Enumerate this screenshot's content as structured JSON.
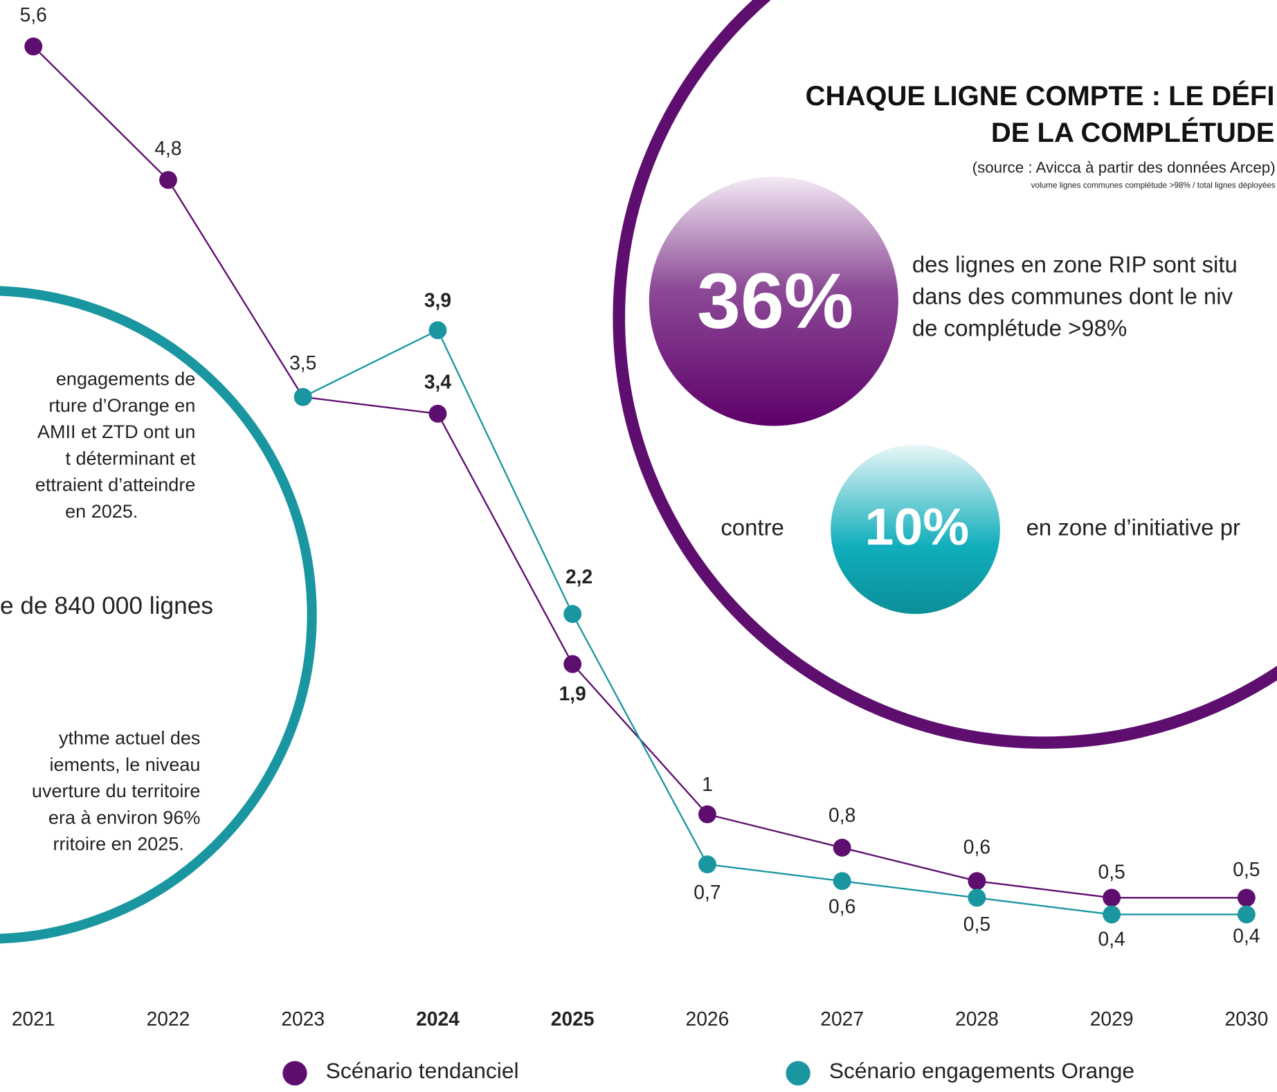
{
  "chart_data": {
    "type": "line",
    "categories": [
      "2021",
      "2022",
      "2023",
      "2024",
      "2025",
      "2026",
      "2027",
      "2028",
      "2029",
      "2030"
    ],
    "series": [
      {
        "name": "Scénario tendanciel",
        "color": "#5e0e6e",
        "values": [
          5.6,
          4.8,
          3.5,
          3.4,
          1.9,
          1,
          0.8,
          0.6,
          0.5,
          0.5
        ],
        "value_labels": [
          "5,6",
          "4,8",
          "3,5",
          "3,4",
          "1,9",
          "1",
          "0,8",
          "0,6",
          "0,5",
          "0,5"
        ]
      },
      {
        "name": "Scénario engagements Orange",
        "color": "#1a96a0",
        "values": [
          null,
          null,
          3.5,
          3.9,
          2.2,
          0.7,
          0.6,
          0.5,
          0.4,
          0.4
        ],
        "value_labels": [
          null,
          null,
          null,
          "3,9",
          "2,2",
          "0,7",
          "0,6",
          "0,5",
          "0,4",
          "0,4"
        ]
      }
    ]
  },
  "left_panel": {
    "paragraph1": [
      "engagements de",
      "rture d’Orange en",
      "AMII et ZTD ont un",
      "t déterminant et",
      "ettraient d’atteindre",
      "en 2025."
    ],
    "highlight": "e de 840 000 lignes",
    "paragraph2": [
      "ythme actuel des",
      "iements, le niveau",
      "uverture du territoire",
      "era à environ 96%",
      "rritoire en 2025."
    ]
  },
  "right_panel": {
    "title": [
      "CHAQUE LIGNE COMPTE : LE DÉFI",
      "DE LA COMPLÉTUDE"
    ],
    "source": "(source : Avicca à partir des données Arcep)",
    "note": "volume lignes communes complétude >98% / total lignes déployées",
    "stat1": "36%",
    "stat1_text": [
      "des lignes en zone RIP sont situ",
      "dans des communes dont le niv",
      "de complétude >98%"
    ],
    "contre": "contre",
    "stat2": "10%",
    "stat2_text": "en zone d’initiative pr"
  }
}
